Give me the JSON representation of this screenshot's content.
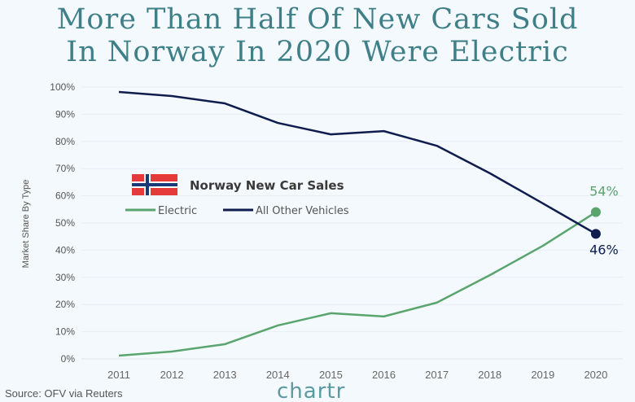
{
  "title_line1": "More Than Half Of New Cars Sold",
  "title_line2": "In Norway In 2020 Were Electric",
  "source": "Source: OFV via Reuters",
  "brand": "chartr",
  "chart_data": {
    "type": "line",
    "title": "Norway New Car Sales",
    "ylabel": "Market Share By Type",
    "xlabel": "",
    "x": [
      "2011",
      "2012",
      "2013",
      "2014",
      "2015",
      "2016",
      "2017",
      "2018",
      "2019",
      "2020"
    ],
    "ylim": [
      0,
      100
    ],
    "yticks": [
      "0%",
      "10%",
      "20%",
      "30%",
      "40%",
      "50%",
      "60%",
      "70%",
      "80%",
      "90%",
      "100%"
    ],
    "grid": true,
    "legend_placement": "center-left",
    "series": [
      {
        "name": "Electric",
        "color": "#5aa46e",
        "values": [
          1.2,
          2.7,
          5.4,
          12.3,
          16.8,
          15.6,
          20.7,
          30.8,
          41.6,
          54
        ],
        "end_label": "54%"
      },
      {
        "name": "All Other Vehicles",
        "color": "#0f1d4e",
        "values": [
          98.2,
          96.7,
          94,
          86.8,
          82.6,
          83.8,
          78.4,
          68.3,
          57.2,
          46
        ],
        "end_label": "46%"
      }
    ]
  }
}
